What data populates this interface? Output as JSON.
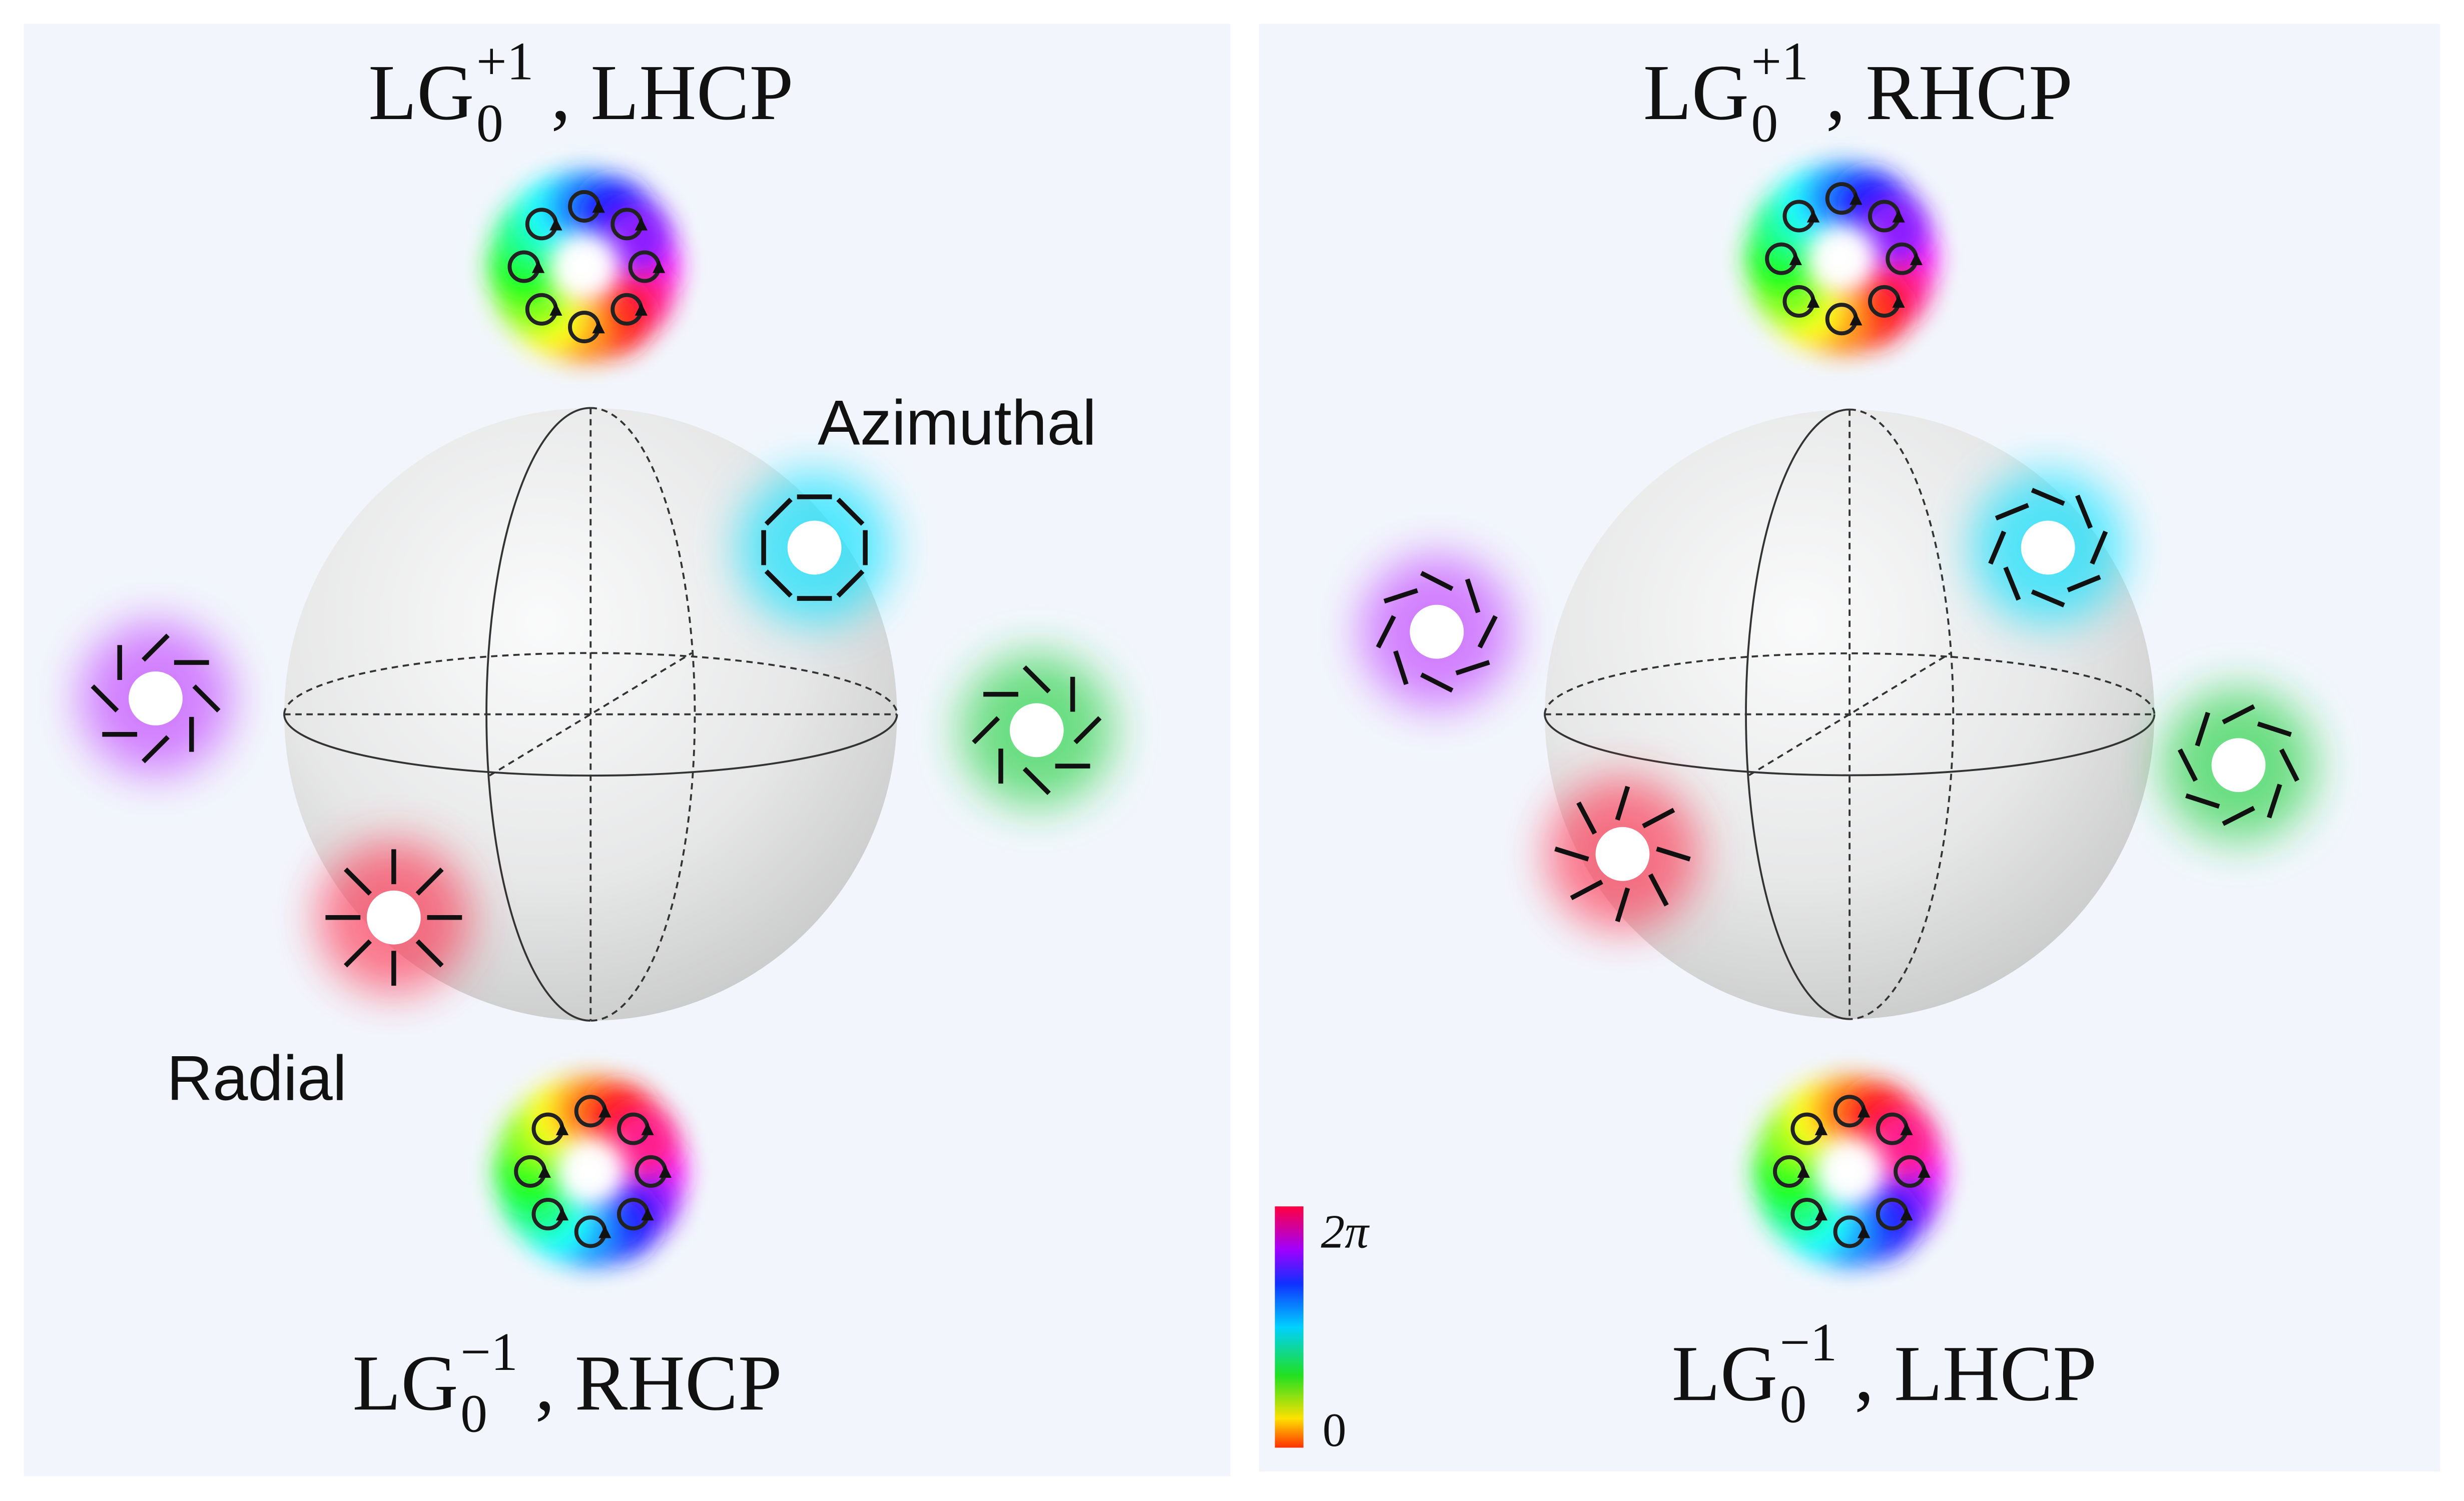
{
  "panels": [
    {
      "top": {
        "base": "LG",
        "sub": "0",
        "sup": "+1",
        "suffix": ", LHCP"
      },
      "bottom": {
        "base": "LG",
        "sub": "0",
        "sup": "−1",
        "suffix": ", RHCP"
      },
      "labels": [
        "Azimuthal",
        "Radial"
      ]
    },
    {
      "top": {
        "base": "LG",
        "sub": "0",
        "sup": "+1",
        "suffix": ", RHCP"
      },
      "bottom": {
        "base": "LG",
        "sub": "0",
        "sup": "−1",
        "suffix": ", LHCP"
      }
    }
  ],
  "colorbar": {
    "top": "2π",
    "bottom": "0"
  }
}
